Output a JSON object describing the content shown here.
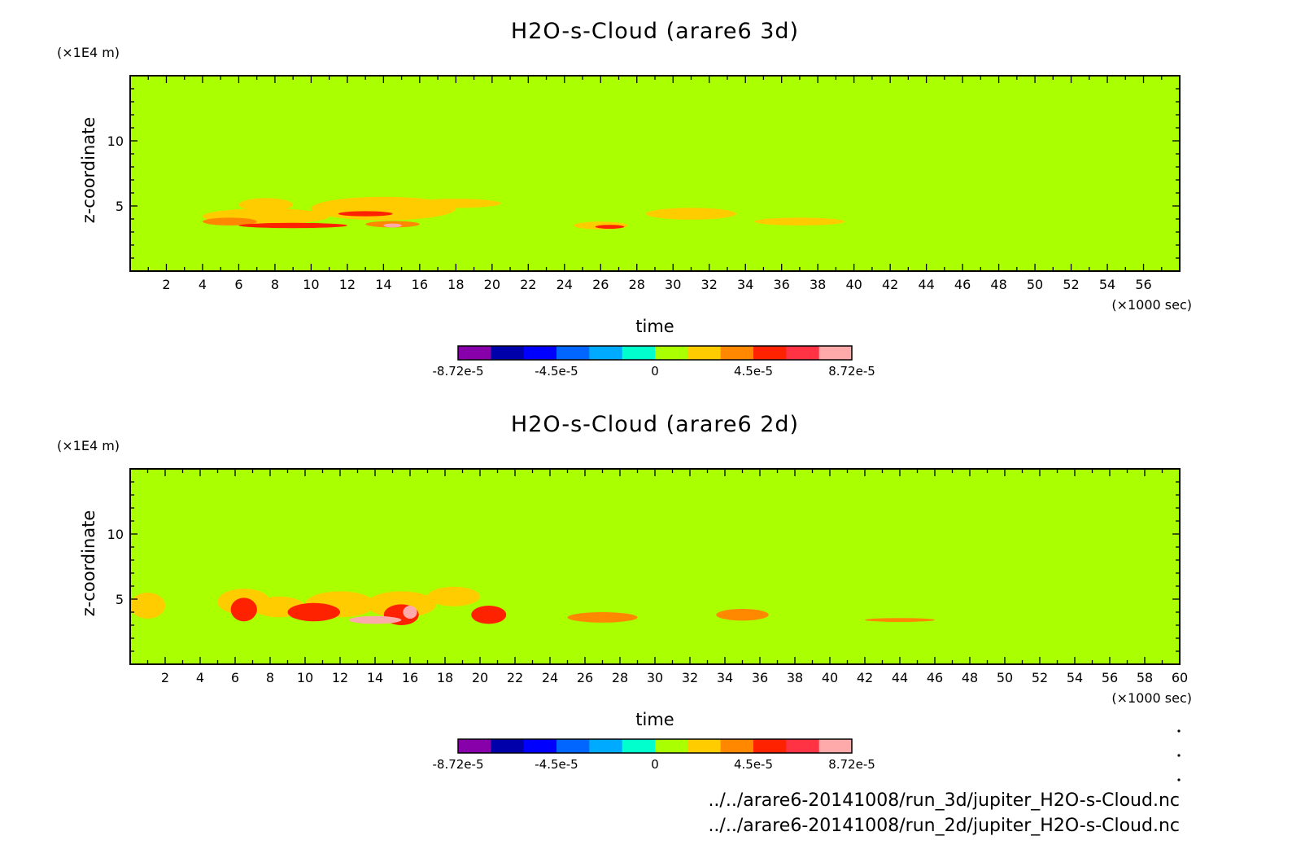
{
  "chart_data": [
    {
      "type": "heatmap",
      "title": "H2O-s-Cloud (arare6 3d)",
      "ylabel": "z-coordinate",
      "yunit": "(×1E4 m)",
      "xlabel": "time",
      "xunit": "(×1000 sec)",
      "xlim": [
        0,
        58
      ],
      "ylim": [
        0,
        15
      ],
      "xticks": [
        "2",
        "4",
        "6",
        "8",
        "10",
        "12",
        "14",
        "16",
        "18",
        "20",
        "22",
        "24",
        "26",
        "28",
        "30",
        "32",
        "34",
        "36",
        "38",
        "40",
        "42",
        "44",
        "46",
        "48",
        "50",
        "52",
        "54",
        "56"
      ],
      "yticks": [
        "5",
        "10"
      ],
      "background_color": "#aaff00",
      "colorbar": {
        "colors": [
          "#8800aa",
          "#0000aa",
          "#0000ff",
          "#0066ff",
          "#00aaff",
          "#00ffcc",
          "#aaff00",
          "#ffcc00",
          "#ff8800",
          "#ff2200",
          "#ff3344",
          "#ffaaaa"
        ],
        "labels": [
          "-8.72e-5",
          "-4.5e-5",
          "0",
          "4.5e-5",
          "8.72e-5"
        ]
      },
      "cloud_patches": [
        {
          "x": 7.5,
          "y": 4.2,
          "w": 7,
          "h": 1.2,
          "level": 7
        },
        {
          "x": 7.5,
          "y": 5.1,
          "w": 3,
          "h": 1.0,
          "level": 7
        },
        {
          "x": 14,
          "y": 4.8,
          "w": 8,
          "h": 1.8,
          "level": 7
        },
        {
          "x": 18,
          "y": 5.2,
          "w": 5,
          "h": 0.7,
          "level": 7
        },
        {
          "x": 26,
          "y": 3.5,
          "w": 3,
          "h": 0.6,
          "level": 7
        },
        {
          "x": 31,
          "y": 4.4,
          "w": 5,
          "h": 0.9,
          "level": 7
        },
        {
          "x": 37,
          "y": 3.8,
          "w": 5,
          "h": 0.6,
          "level": 7
        },
        {
          "x": 5.5,
          "y": 3.8,
          "w": 3,
          "h": 0.6,
          "level": 8
        },
        {
          "x": 9,
          "y": 3.5,
          "w": 6,
          "h": 0.4,
          "level": 9
        },
        {
          "x": 13,
          "y": 4.4,
          "w": 3,
          "h": 0.4,
          "level": 9
        },
        {
          "x": 14.5,
          "y": 3.6,
          "w": 3,
          "h": 0.5,
          "level": 8
        },
        {
          "x": 14.5,
          "y": 3.5,
          "w": 1,
          "h": 0.3,
          "level": 11
        },
        {
          "x": 26.5,
          "y": 3.4,
          "w": 1.6,
          "h": 0.3,
          "level": 9
        }
      ]
    },
    {
      "type": "heatmap",
      "title": "H2O-s-Cloud (arare6 2d)",
      "ylabel": "z-coordinate",
      "yunit": "(×1E4 m)",
      "xlabel": "time",
      "xunit": "(×1000 sec)",
      "xlim": [
        0,
        60
      ],
      "ylim": [
        0,
        15
      ],
      "xticks": [
        "2",
        "4",
        "6",
        "8",
        "10",
        "12",
        "14",
        "16",
        "18",
        "20",
        "22",
        "24",
        "26",
        "28",
        "30",
        "32",
        "34",
        "36",
        "38",
        "40",
        "42",
        "44",
        "46",
        "48",
        "50",
        "52",
        "54",
        "56",
        "58",
        "60"
      ],
      "yticks": [
        "5",
        "10"
      ],
      "background_color": "#aaff00",
      "colorbar": {
        "colors": [
          "#8800aa",
          "#0000aa",
          "#0000ff",
          "#0066ff",
          "#00aaff",
          "#00ffcc",
          "#aaff00",
          "#ffcc00",
          "#ff8800",
          "#ff2200",
          "#ff3344",
          "#ffaaaa"
        ],
        "labels": [
          "-8.72e-5",
          "-4.5e-5",
          "0",
          "4.5e-5",
          "8.72e-5"
        ]
      },
      "cloud_patches": [
        {
          "x": 1,
          "y": 4.5,
          "w": 2,
          "h": 2.0,
          "level": 7
        },
        {
          "x": 6.5,
          "y": 4.8,
          "w": 3,
          "h": 2.0,
          "level": 7
        },
        {
          "x": 8.5,
          "y": 4.4,
          "w": 3,
          "h": 1.6,
          "level": 7
        },
        {
          "x": 12,
          "y": 4.6,
          "w": 4,
          "h": 2.0,
          "level": 7
        },
        {
          "x": 15.5,
          "y": 4.6,
          "w": 4,
          "h": 2.0,
          "level": 7
        },
        {
          "x": 18.5,
          "y": 5.2,
          "w": 3,
          "h": 1.5,
          "level": 7
        },
        {
          "x": 6.5,
          "y": 4.2,
          "w": 1.5,
          "h": 1.8,
          "level": 9
        },
        {
          "x": 10.5,
          "y": 4.0,
          "w": 3,
          "h": 1.4,
          "level": 9
        },
        {
          "x": 15.5,
          "y": 3.8,
          "w": 2,
          "h": 1.6,
          "level": 9
        },
        {
          "x": 14,
          "y": 3.4,
          "w": 3,
          "h": 0.6,
          "level": 11
        },
        {
          "x": 16,
          "y": 4.0,
          "w": 0.8,
          "h": 1.0,
          "level": 11
        },
        {
          "x": 20.5,
          "y": 3.8,
          "w": 2,
          "h": 1.4,
          "level": 9
        },
        {
          "x": 27,
          "y": 3.6,
          "w": 4,
          "h": 0.8,
          "level": 8
        },
        {
          "x": 35,
          "y": 3.8,
          "w": 3,
          "h": 0.9,
          "level": 8
        },
        {
          "x": 44,
          "y": 3.4,
          "w": 4,
          "h": 0.3,
          "level": 8
        }
      ]
    }
  ],
  "footer": {
    "file_3d": "../../arare6-20141008/run_3d/jupiter_H2O-s-Cloud.nc",
    "file_2d": "../../arare6-20141008/run_2d/jupiter_H2O-s-Cloud.nc"
  }
}
